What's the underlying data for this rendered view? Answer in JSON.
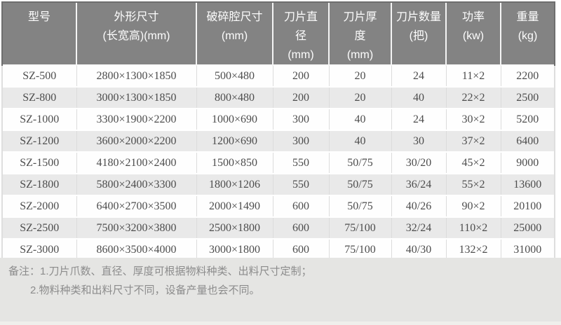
{
  "table": {
    "headers": [
      "型号",
      "外形尺寸\n(长宽高)(mm)",
      "破碎腔尺寸\n(mm)",
      "刀片直\n径\n(mm)",
      "刀片厚\n度\n(mm)",
      "刀片数量\n(把)",
      "功率\n(kw)",
      "重量\n(kg)"
    ],
    "rows": [
      [
        "SZ-500",
        "2800×1300×1850",
        "500×480",
        "200",
        "20",
        "24",
        "11×2",
        "2200"
      ],
      [
        "SZ-800",
        "3000×1300×1850",
        "800×480",
        "200",
        "20",
        "40",
        "22×2",
        "2500"
      ],
      [
        "SZ-1000",
        "3300×1900×2200",
        "1000×690",
        "300",
        "40",
        "24",
        "30×2",
        "5200"
      ],
      [
        "SZ-1200",
        "3600×2000×2200",
        "1200×690",
        "300",
        "40",
        "30",
        "37×2",
        "6400"
      ],
      [
        "SZ-1500",
        "4180×2100×2400",
        "1500×850",
        "550",
        "50/75",
        "30/20",
        "45×2",
        "9000"
      ],
      [
        "SZ-1800",
        "5800×2400×3300",
        "1800×1206",
        "550",
        "50/75",
        "36/24",
        "55×2",
        "13600"
      ],
      [
        "SZ-2000",
        "6400×2700×3500",
        "2000×1490",
        "600",
        "50/75",
        "40/26",
        "90×2",
        "20100"
      ],
      [
        "SZ-2500",
        "7500×3200×3800",
        "2500×1800",
        "600",
        "75/100",
        "32/24",
        "110×2",
        "25000"
      ],
      [
        "SZ-3000",
        "8600×3500×4000",
        "3000×1800",
        "600",
        "75/100",
        "40/30",
        "132×2",
        "31000"
      ]
    ]
  },
  "notes": {
    "line1": "备注：1.刀片爪数、直径、厚度可根据物料种类、出料尺寸定制；",
    "line2": "2.物料种类和出料尺寸不同，设备产量也会不同。"
  },
  "colors": {
    "header_bg": "#838383",
    "header_text": "#fdfdfd",
    "row_alt_bg": "#e9e9e9",
    "body_text": "#4d4d4d",
    "notes_bg": "#e5e5e3",
    "notes_text": "#8c8c8c"
  }
}
